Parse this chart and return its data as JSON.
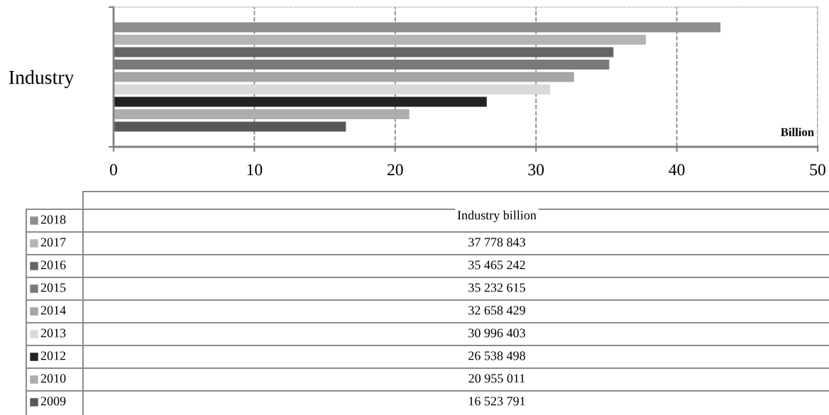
{
  "chart_data": {
    "type": "bar",
    "orientation": "horizontal",
    "categories": [
      "Industry"
    ],
    "xlabel": "Billion",
    "xlim": [
      0,
      50
    ],
    "xticks": [
      0,
      10,
      20,
      30,
      40,
      50
    ],
    "grid": "x",
    "legend": "bottom",
    "annotations": [
      "Industry billion",
      "37 778 843",
      "35 465 242",
      "35 232 615",
      "32 658 429",
      "30 996 403",
      "26 538 498",
      "20 955 011",
      "16 523 791"
    ],
    "series": [
      {
        "name": "2018",
        "color": "#8d8d8d",
        "values": [
          43.1
        ]
      },
      {
        "name": "2017",
        "color": "#b4b4b4",
        "values": [
          37.8
        ]
      },
      {
        "name": "2016",
        "color": "#656565",
        "values": [
          35.5
        ]
      },
      {
        "name": "2015",
        "color": "#7a7a7a",
        "values": [
          35.2
        ]
      },
      {
        "name": "2014",
        "color": "#a5a5a5",
        "values": [
          32.7
        ]
      },
      {
        "name": "2013",
        "color": "#d9d9d9",
        "values": [
          31.0
        ]
      },
      {
        "name": "2012",
        "color": "#232323",
        "values": [
          26.5
        ]
      },
      {
        "name": "2010",
        "color": "#adadad",
        "values": [
          21.0
        ]
      },
      {
        "name": "2009",
        "color": "#585858",
        "values": [
          16.5
        ]
      }
    ]
  }
}
